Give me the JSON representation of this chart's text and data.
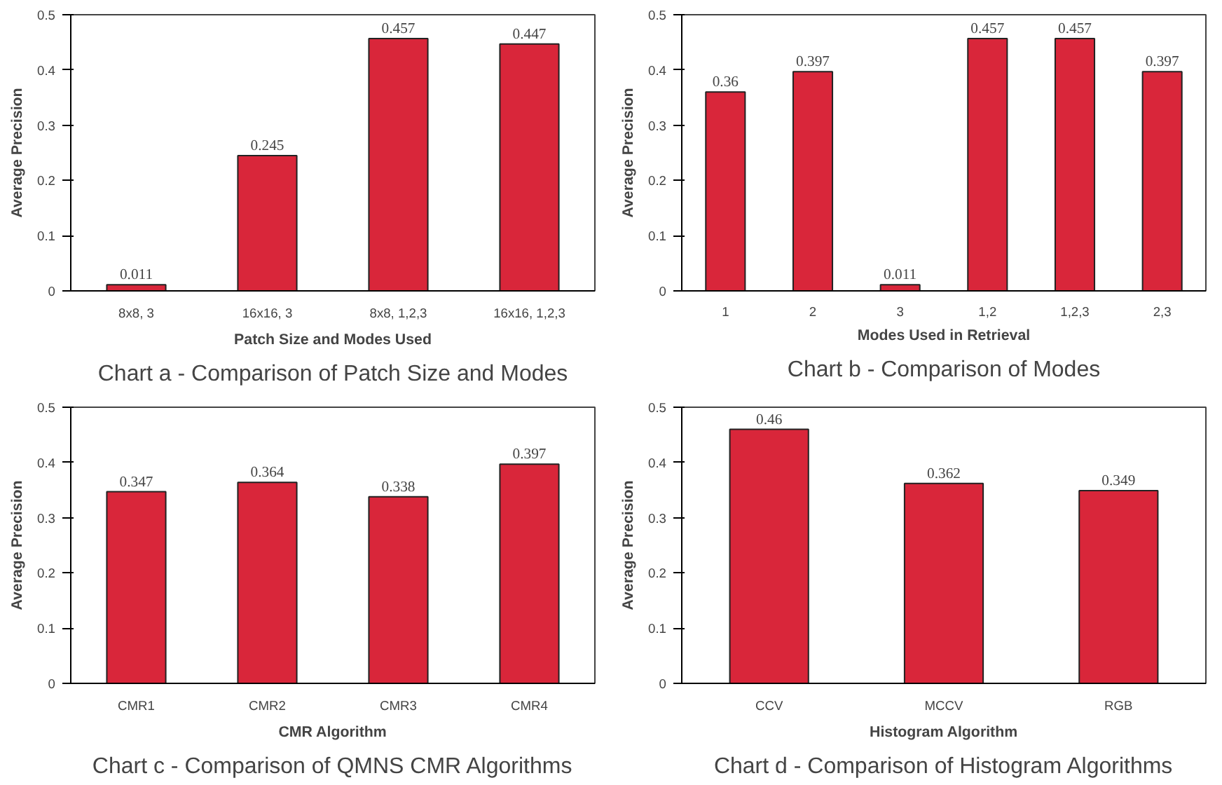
{
  "chart_data": [
    {
      "type": "bar",
      "title": "Chart a - Comparison of Patch Size and Modes",
      "xlabel": "Patch Size and Modes Used",
      "ylabel": "Average Precision",
      "categories": [
        "8x8, 3",
        "16x16, 3",
        "8x8, 1,2,3",
        "16x16, 1,2,3"
      ],
      "values": [
        0.011,
        0.245,
        0.457,
        0.447
      ],
      "color": "#d9263a",
      "ylim": [
        0,
        0.5
      ],
      "yticks": [
        0,
        0.1,
        0.2,
        0.3,
        0.4,
        0.5
      ],
      "data_labels": true
    },
    {
      "type": "bar",
      "title": "Chart b - Comparison of Modes",
      "xlabel": "Modes Used in Retrieval",
      "ylabel": "Average Precision",
      "categories": [
        "1",
        "2",
        "3",
        "1,2",
        "1,2,3",
        "2,3"
      ],
      "values": [
        0.36,
        0.397,
        0.011,
        0.457,
        0.457,
        0.397
      ],
      "color": "#d9263a",
      "ylim": [
        0,
        0.5
      ],
      "yticks": [
        0,
        0.1,
        0.2,
        0.3,
        0.4,
        0.5
      ],
      "data_labels": true
    },
    {
      "type": "bar",
      "title": "Chart c - Comparison of QMNS CMR Algorithms",
      "xlabel": "CMR Algorithm",
      "ylabel": "Average Precision",
      "categories": [
        "CMR1",
        "CMR2",
        "CMR3",
        "CMR4"
      ],
      "values": [
        0.347,
        0.364,
        0.338,
        0.397
      ],
      "color": "#d9263a",
      "ylim": [
        0,
        0.5
      ],
      "yticks": [
        0,
        0.1,
        0.2,
        0.3,
        0.4,
        0.5
      ],
      "data_labels": true
    },
    {
      "type": "bar",
      "title": "Chart d - Comparison of Histogram Algorithms",
      "xlabel": "Histogram Algorithm",
      "ylabel": "Average Precision",
      "categories": [
        "CCV",
        "MCCV",
        "RGB"
      ],
      "values": [
        0.46,
        0.362,
        0.349
      ],
      "color": "#d9263a",
      "ylim": [
        0,
        0.5
      ],
      "yticks": [
        0,
        0.1,
        0.2,
        0.3,
        0.4,
        0.5
      ],
      "data_labels": true
    }
  ]
}
